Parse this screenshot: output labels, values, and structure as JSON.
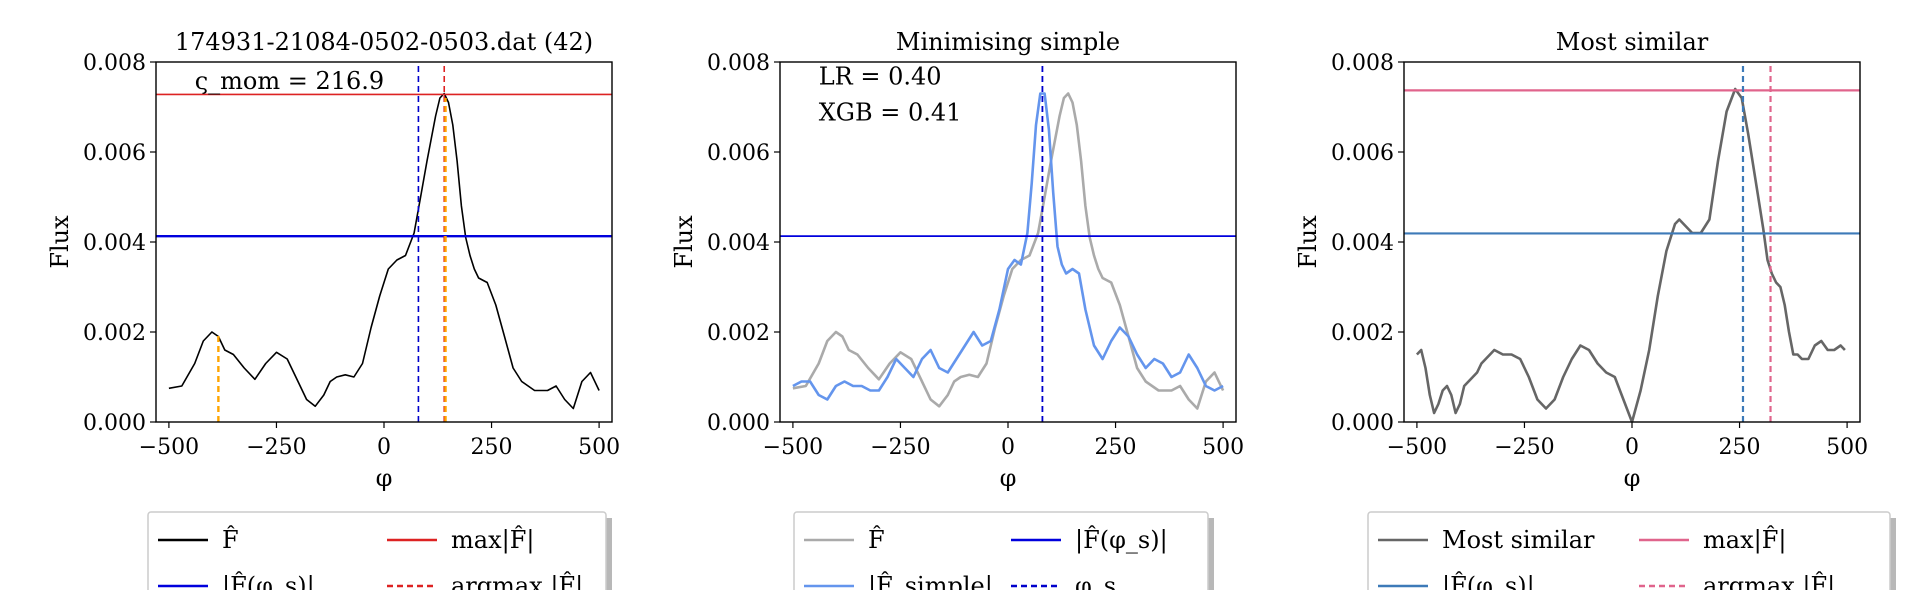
{
  "chart_data": [
    {
      "type": "line",
      "title": "174931-21084-0502-0503.dat (42)",
      "xlabel": "φ",
      "ylabel": "Flux",
      "xlim": [
        -530,
        530
      ],
      "ylim": [
        0,
        0.008
      ],
      "xticks": [
        -500,
        -250,
        0,
        250,
        500
      ],
      "xtick_labels": [
        "−500",
        "−250",
        "0",
        "250",
        "500"
      ],
      "yticks": [
        0,
        0.002,
        0.004,
        0.006,
        0.008
      ],
      "ytick_labels": [
        "0.000",
        "0.002",
        "0.004",
        "0.006",
        "0.008"
      ],
      "grid": false,
      "annotations": [
        {
          "text": "ς_mom = 216.9",
          "x": -440,
          "y": 0.0074
        }
      ],
      "series": [
        {
          "name": "F̂",
          "color": "#000000",
          "style": "solid",
          "width": 1.6,
          "x": [
            -500,
            -470,
            -440,
            -420,
            -400,
            -385,
            -370,
            -350,
            -325,
            -300,
            -275,
            -250,
            -225,
            -200,
            -180,
            -160,
            -140,
            -125,
            -110,
            -90,
            -70,
            -50,
            -30,
            -10,
            10,
            30,
            50,
            70,
            85,
            100,
            110,
            120,
            130,
            140,
            150,
            160,
            170,
            180,
            190,
            200,
            210,
            220,
            240,
            260,
            280,
            300,
            320,
            350,
            380,
            400,
            420,
            440,
            460,
            480,
            500
          ],
          "y": [
            0.00075,
            0.0008,
            0.0013,
            0.0018,
            0.002,
            0.0019,
            0.0016,
            0.0015,
            0.0012,
            0.00095,
            0.0013,
            0.00155,
            0.0014,
            0.0009,
            0.0005,
            0.00035,
            0.0006,
            0.0009,
            0.001,
            0.00105,
            0.001,
            0.0013,
            0.0021,
            0.0028,
            0.0034,
            0.0036,
            0.0037,
            0.0042,
            0.005,
            0.0058,
            0.0063,
            0.0068,
            0.0072,
            0.0073,
            0.0071,
            0.0066,
            0.0058,
            0.0048,
            0.0041,
            0.0037,
            0.0034,
            0.0032,
            0.0031,
            0.0026,
            0.0019,
            0.0012,
            0.0009,
            0.0007,
            0.0007,
            0.0008,
            0.0005,
            0.0003,
            0.0009,
            0.0011,
            0.0007
          ]
        },
        {
          "name": "max|F̂|",
          "color": "#dd2222",
          "style": "hline",
          "width": 1.6,
          "y": 0.00728
        },
        {
          "name": "|F̂(φ_s)|",
          "color": "#0000dd",
          "style": "hline",
          "width": 2.4,
          "y": 0.00413
        },
        {
          "name": "argmax |F̂|",
          "color": "#dd2222",
          "style": "vdash",
          "width": 1.6,
          "x": 140,
          "y0": 0,
          "y1": 0.008
        },
        {
          "name": "φ_s",
          "color": "#0000cc",
          "style": "vdash",
          "width": 1.6,
          "x": 80,
          "y0": 0,
          "y1": 0.008
        },
        {
          "name": "",
          "color": "#ffa500",
          "style": "vdash",
          "width": 2.4,
          "x": -385,
          "y0": 0,
          "y1": 0.002
        },
        {
          "name": "",
          "color": "#ffa500",
          "style": "vdash",
          "width": 2.4,
          "x": 143,
          "y0": 0,
          "y1": 0.0072
        }
      ],
      "legend": {
        "location": "below",
        "entries": [
          {
            "label": "F̂",
            "color": "#000000",
            "style": "solid"
          },
          {
            "label": "max|F̂|",
            "color": "#dd2222",
            "style": "solid"
          },
          {
            "label": "|F̂(φ_s)|",
            "color": "#0000dd",
            "style": "solid"
          },
          {
            "label": "argmax |F̂|",
            "color": "#dd2222",
            "style": "dashed"
          }
        ]
      }
    },
    {
      "type": "line",
      "title": "Minimising simple",
      "xlabel": "φ",
      "ylabel": "Flux",
      "xlim": [
        -530,
        530
      ],
      "ylim": [
        0,
        0.008
      ],
      "xticks": [
        -500,
        -250,
        0,
        250,
        500
      ],
      "xtick_labels": [
        "−500",
        "−250",
        "0",
        "250",
        "500"
      ],
      "yticks": [
        0,
        0.002,
        0.004,
        0.006,
        0.008
      ],
      "ytick_labels": [
        "0.000",
        "0.002",
        "0.004",
        "0.006",
        "0.008"
      ],
      "grid": false,
      "annotations": [
        {
          "text": "LR = 0.40",
          "x": -440,
          "y": 0.0075
        },
        {
          "text": "XGB = 0.41",
          "x": -440,
          "y": 0.0067
        }
      ],
      "series": [
        {
          "name": "F̂",
          "color": "#aaaaaa",
          "style": "solid",
          "width": 2.6,
          "x": [
            -500,
            -470,
            -440,
            -420,
            -400,
            -385,
            -370,
            -350,
            -325,
            -300,
            -275,
            -250,
            -225,
            -200,
            -180,
            -160,
            -140,
            -125,
            -110,
            -90,
            -70,
            -50,
            -30,
            -10,
            10,
            30,
            50,
            70,
            85,
            100,
            110,
            120,
            130,
            140,
            150,
            160,
            170,
            180,
            190,
            200,
            210,
            220,
            240,
            260,
            280,
            300,
            320,
            350,
            380,
            400,
            420,
            440,
            460,
            480,
            500
          ],
          "y": [
            0.00075,
            0.0008,
            0.0013,
            0.0018,
            0.002,
            0.0019,
            0.0016,
            0.0015,
            0.0012,
            0.00095,
            0.0013,
            0.00155,
            0.0014,
            0.0009,
            0.0005,
            0.00035,
            0.0006,
            0.0009,
            0.001,
            0.00105,
            0.001,
            0.0013,
            0.0021,
            0.0028,
            0.0034,
            0.0036,
            0.0037,
            0.0042,
            0.005,
            0.0058,
            0.0063,
            0.0068,
            0.0072,
            0.0073,
            0.0071,
            0.0066,
            0.0058,
            0.0048,
            0.0041,
            0.0037,
            0.0034,
            0.0032,
            0.0031,
            0.0026,
            0.0019,
            0.0012,
            0.0009,
            0.0007,
            0.0007,
            0.0008,
            0.0005,
            0.0003,
            0.0009,
            0.0011,
            0.0007
          ]
        },
        {
          "name": "|F̂_simple|",
          "color": "#6495ed",
          "style": "solid",
          "width": 2.6,
          "x": [
            -500,
            -480,
            -460,
            -440,
            -420,
            -400,
            -380,
            -360,
            -340,
            -320,
            -300,
            -280,
            -260,
            -240,
            -220,
            -200,
            -180,
            -160,
            -140,
            -120,
            -100,
            -80,
            -60,
            -40,
            -20,
            0,
            15,
            30,
            45,
            55,
            65,
            75,
            85,
            95,
            105,
            115,
            125,
            135,
            150,
            165,
            180,
            200,
            220,
            240,
            260,
            280,
            300,
            320,
            340,
            360,
            380,
            400,
            420,
            440,
            460,
            480,
            500
          ],
          "y": [
            0.0008,
            0.0009,
            0.0009,
            0.0006,
            0.0005,
            0.0008,
            0.0009,
            0.0008,
            0.0008,
            0.0007,
            0.0007,
            0.001,
            0.0014,
            0.0012,
            0.001,
            0.0014,
            0.0016,
            0.0012,
            0.0011,
            0.0014,
            0.0017,
            0.002,
            0.0017,
            0.0018,
            0.0025,
            0.0034,
            0.0036,
            0.0035,
            0.0042,
            0.0053,
            0.0066,
            0.0073,
            0.0073,
            0.0065,
            0.0051,
            0.0039,
            0.0035,
            0.0033,
            0.0034,
            0.0033,
            0.0025,
            0.0017,
            0.0014,
            0.0018,
            0.0021,
            0.0019,
            0.0015,
            0.0012,
            0.0014,
            0.0013,
            0.001,
            0.0011,
            0.0015,
            0.0012,
            0.0008,
            0.0007,
            0.0008
          ]
        },
        {
          "name": "|F̂(φ_s)|",
          "color": "#0000dd",
          "style": "hline",
          "width": 1.8,
          "y": 0.00413
        },
        {
          "name": "φ_s",
          "color": "#0000cc",
          "style": "vdash",
          "width": 1.8,
          "x": 80,
          "y0": 0,
          "y1": 0.008
        }
      ],
      "legend": {
        "location": "below",
        "entries": [
          {
            "label": "F̂",
            "color": "#aaaaaa",
            "style": "solid"
          },
          {
            "label": "|F̂(φ_s)|",
            "color": "#0000dd",
            "style": "solid"
          },
          {
            "label": "|F̂_simple|",
            "color": "#6495ed",
            "style": "solid"
          },
          {
            "label": "φ_s",
            "color": "#0000cc",
            "style": "dashed"
          }
        ]
      }
    },
    {
      "type": "line",
      "title": "Most similar",
      "xlabel": "φ",
      "ylabel": "Flux",
      "xlim": [
        -530,
        530
      ],
      "ylim": [
        0,
        0.008
      ],
      "xticks": [
        -500,
        -250,
        0,
        250,
        500
      ],
      "xtick_labels": [
        "−500",
        "−250",
        "0",
        "250",
        "500"
      ],
      "yticks": [
        0,
        0.002,
        0.004,
        0.006,
        0.008
      ],
      "ytick_labels": [
        "0.000",
        "0.002",
        "0.004",
        "0.006",
        "0.008"
      ],
      "grid": false,
      "annotations": [],
      "series": [
        {
          "name": "Most similar",
          "color": "#666666",
          "style": "solid",
          "width": 2.6,
          "x": [
            -500,
            -490,
            -480,
            -470,
            -460,
            -450,
            -440,
            -430,
            -420,
            -410,
            -400,
            -390,
            -380,
            -370,
            -360,
            -350,
            -340,
            -320,
            -300,
            -280,
            -260,
            -240,
            -220,
            -200,
            -180,
            -160,
            -140,
            -120,
            -100,
            -80,
            -60,
            -40,
            -20,
            0,
            20,
            40,
            60,
            80,
            100,
            110,
            120,
            140,
            160,
            180,
            200,
            220,
            240,
            255,
            270,
            290,
            305,
            315,
            325,
            335,
            345,
            355,
            365,
            375,
            385,
            395,
            410,
            425,
            440,
            455,
            470,
            485,
            495
          ],
          "y": [
            0.0015,
            0.0016,
            0.0012,
            0.0006,
            0.0002,
            0.0004,
            0.0007,
            0.0008,
            0.0006,
            0.0002,
            0.0004,
            0.0008,
            0.0009,
            0.001,
            0.0011,
            0.0013,
            0.0014,
            0.0016,
            0.0015,
            0.0015,
            0.0014,
            0.001,
            0.0005,
            0.0003,
            0.0005,
            0.001,
            0.0014,
            0.0017,
            0.0016,
            0.0013,
            0.0011,
            0.001,
            0.0005,
            0.0,
            0.0007,
            0.0016,
            0.0028,
            0.0038,
            0.0044,
            0.0045,
            0.0044,
            0.0042,
            0.0042,
            0.0045,
            0.0058,
            0.0069,
            0.0074,
            0.0072,
            0.0064,
            0.0052,
            0.0043,
            0.0036,
            0.0033,
            0.0031,
            0.003,
            0.0026,
            0.002,
            0.0015,
            0.0015,
            0.0014,
            0.0014,
            0.0017,
            0.0018,
            0.0016,
            0.0016,
            0.0017,
            0.0016
          ]
        },
        {
          "name": "max|F̂|",
          "color": "#e0648c",
          "style": "hline",
          "width": 2.2,
          "y": 0.00737
        },
        {
          "name": "|F̂(φ_s)|",
          "color": "#3d7ab8",
          "style": "hline",
          "width": 2.2,
          "y": 0.00419
        },
        {
          "name": "argmax |F̂|",
          "color": "#e0648c",
          "style": "vdash",
          "width": 2.2,
          "x": 322,
          "y0": 0,
          "y1": 0.008
        },
        {
          "name": "",
          "color": "#3d7ab8",
          "style": "vdash",
          "width": 2.2,
          "x": 258,
          "y0": 0,
          "y1": 0.008
        }
      ],
      "legend": {
        "location": "below",
        "entries": [
          {
            "label": "Most similar",
            "color": "#666666",
            "style": "solid"
          },
          {
            "label": "max|F̂|",
            "color": "#e0648c",
            "style": "solid"
          },
          {
            "label": "|F̂(φ_s)|",
            "color": "#3d7ab8",
            "style": "solid"
          },
          {
            "label": "argmax |F̂|",
            "color": "#e0648c",
            "style": "dashed"
          }
        ]
      }
    }
  ]
}
